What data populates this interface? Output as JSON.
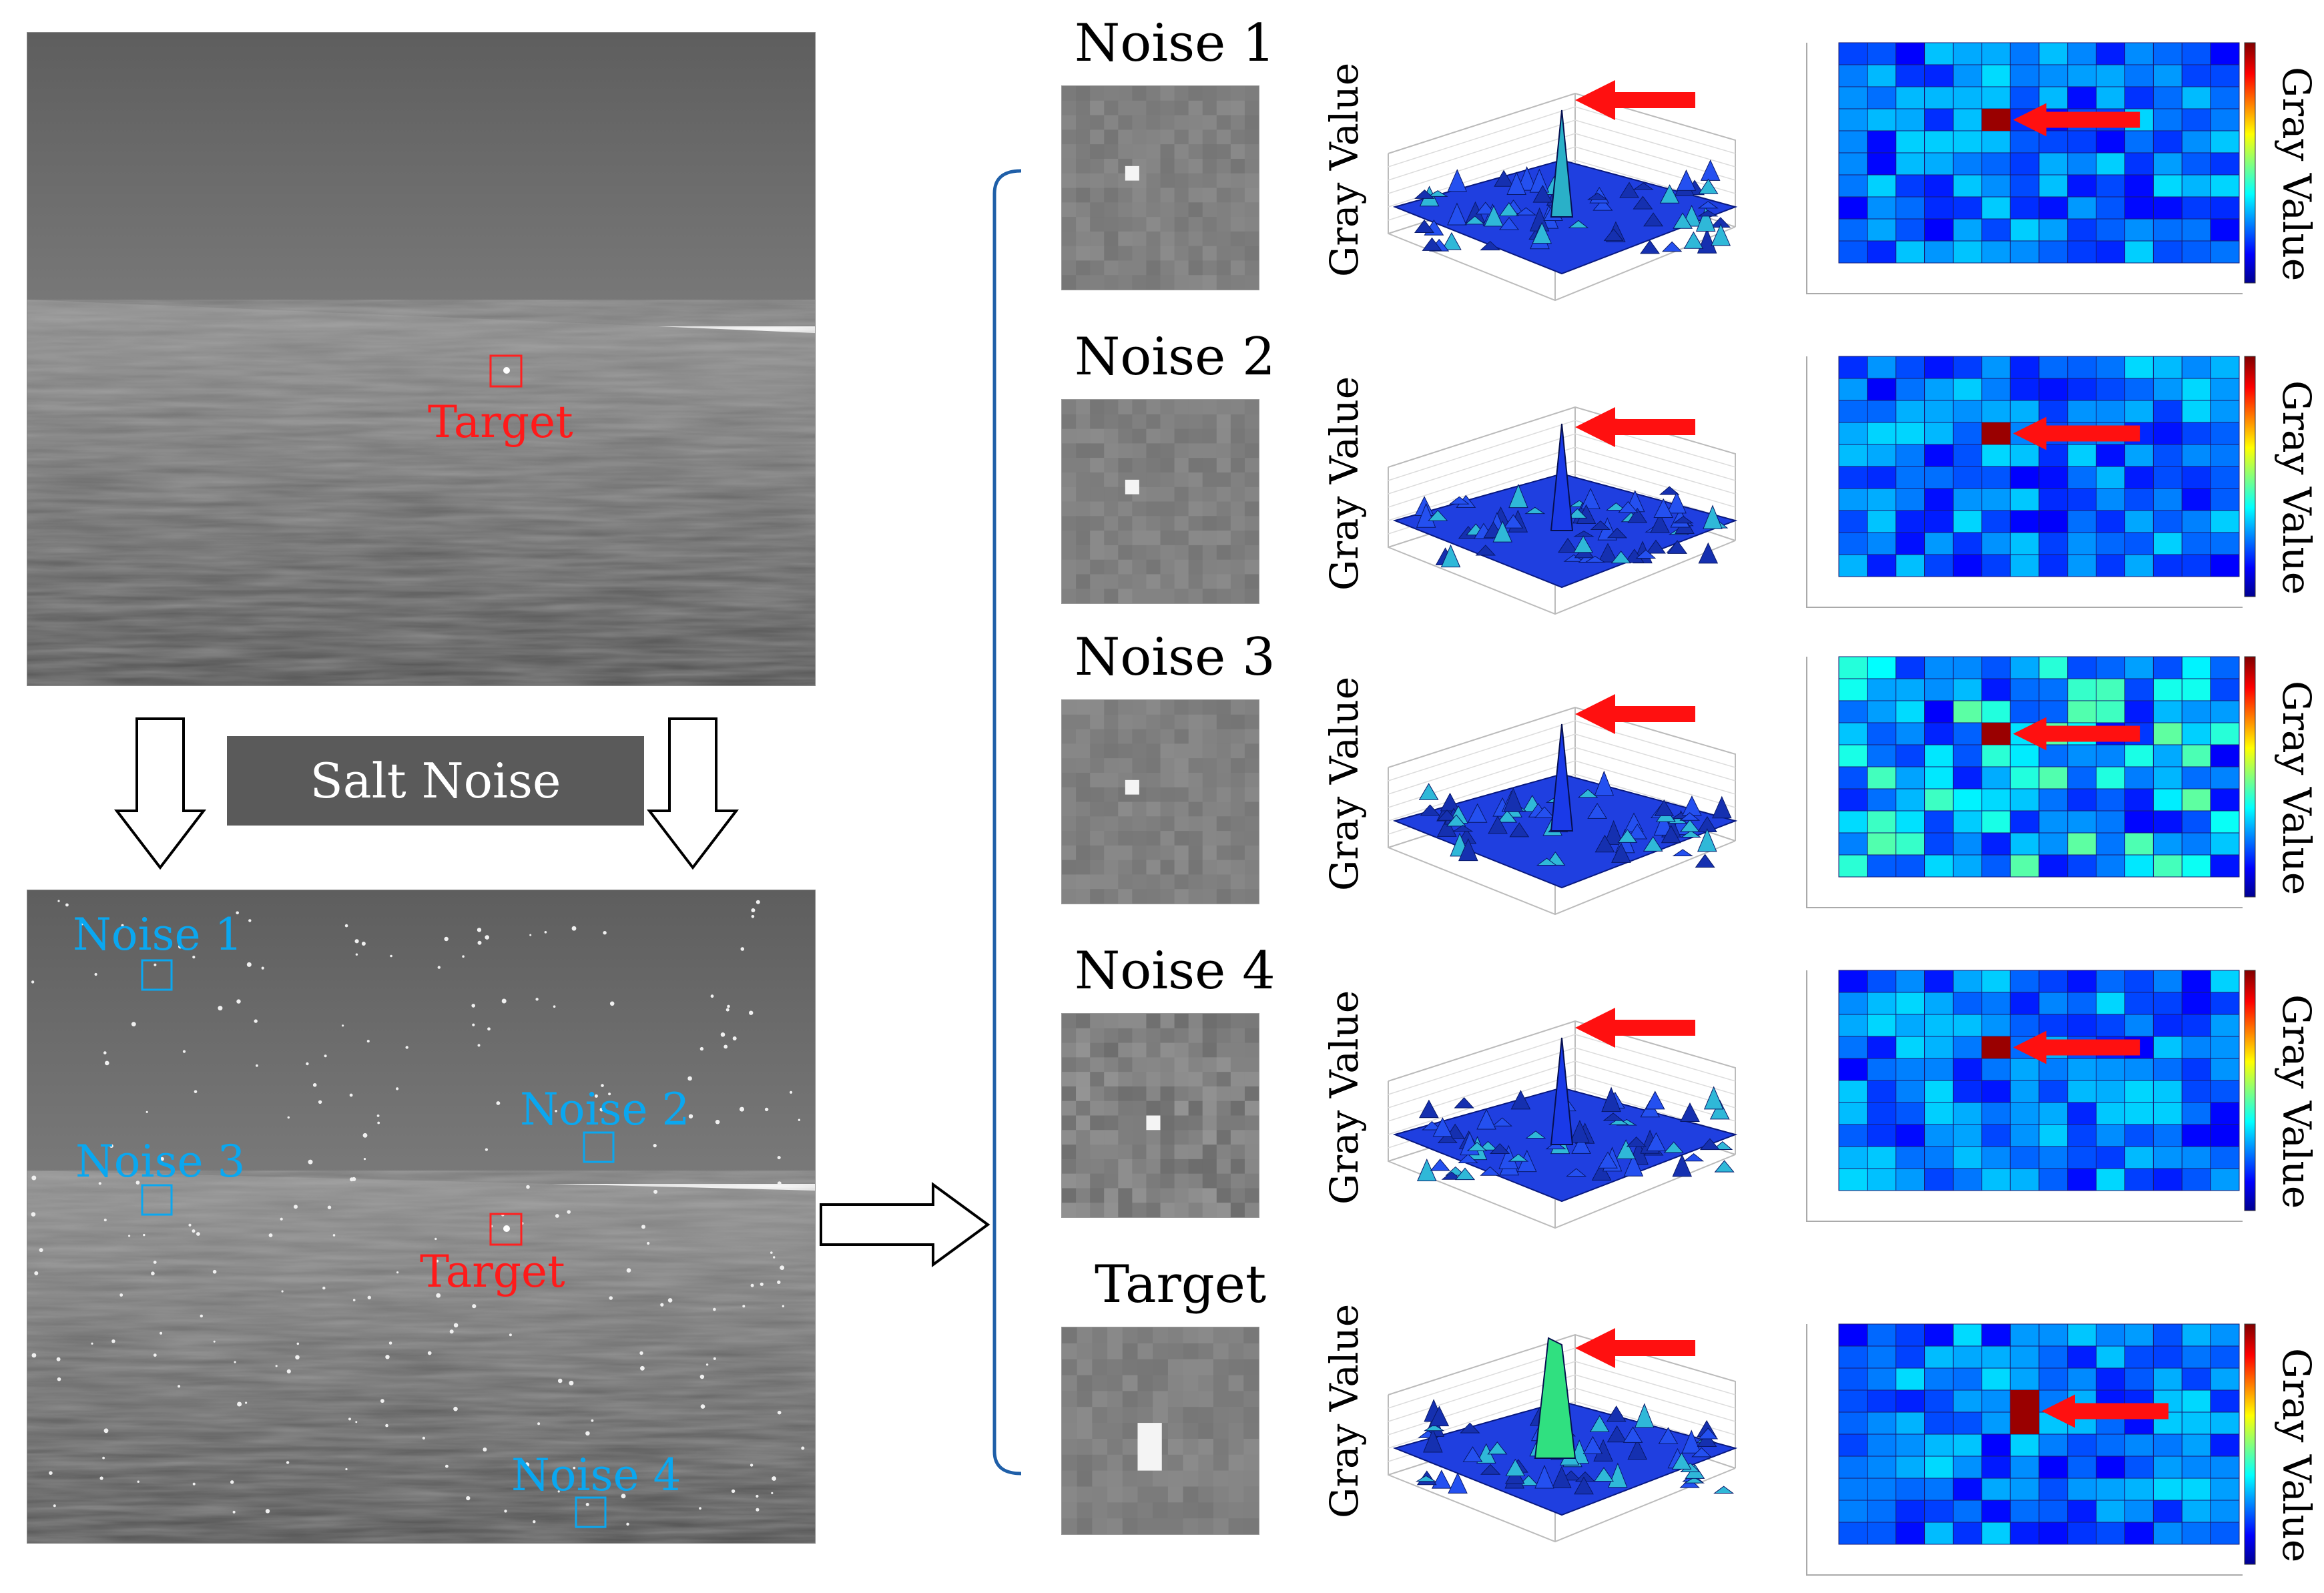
{
  "salt_label": "Salt Noise",
  "top_image": {
    "target_label": "Target"
  },
  "bottom_image": {
    "labels": [
      {
        "text": "Noise 1"
      },
      {
        "text": "Noise 2"
      },
      {
        "text": "Noise 3"
      },
      {
        "text": "Noise 4"
      },
      {
        "text": "Target"
      }
    ]
  },
  "rows": [
    {
      "title": "Noise 1",
      "axis_label": "Gray Value",
      "colorbar_label": "Gray Value"
    },
    {
      "title": "Noise 2",
      "axis_label": "Gray Value",
      "colorbar_label": "Gray Value"
    },
    {
      "title": "Noise 3",
      "axis_label": "Gray Value",
      "colorbar_label": "Gray Value"
    },
    {
      "title": "Noise 4",
      "axis_label": "Gray Value",
      "colorbar_label": "Gray Value"
    },
    {
      "title": "Target",
      "axis_label": "Gray Value",
      "colorbar_label": "Gray Value"
    }
  ],
  "colors": {
    "noise_label": "#0aa7f0",
    "target_label": "#ff1a1a",
    "arrow": "#ff1010",
    "bracket": "#1f5fa8"
  }
}
